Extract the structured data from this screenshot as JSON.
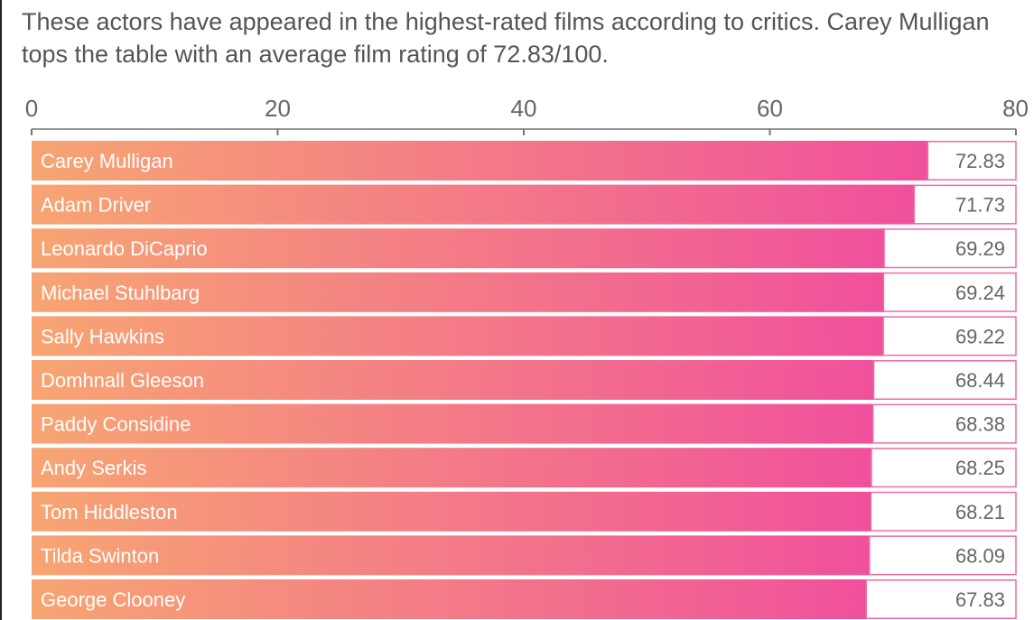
{
  "caption": "These actors have appeared in the highest-rated films according to critics. Carey Mulligan tops the table with an average film rating of 72.83/100.",
  "colors": {
    "gradient_start": "#f7a572",
    "gradient_end": "#f0509c",
    "value_box_border": "#ee6aa7",
    "axis": "#777777",
    "text_muted": "#666666"
  },
  "chart_data": {
    "type": "bar",
    "orientation": "horizontal",
    "title": "",
    "xlabel": "",
    "ylabel": "",
    "xlim": [
      0,
      80
    ],
    "x_ticks": [
      0,
      20,
      40,
      60,
      80
    ],
    "axis_position": "top",
    "grid": false,
    "categories": [
      "Carey Mulligan",
      "Adam Driver",
      "Leonardo DiCaprio",
      "Michael Stuhlbarg",
      "Sally Hawkins",
      "Domhnall Gleeson",
      "Paddy Considine",
      "Andy Serkis",
      "Tom Hiddleston",
      "Tilda Swinton",
      "George Clooney"
    ],
    "values": [
      72.83,
      71.73,
      69.29,
      69.24,
      69.22,
      68.44,
      68.38,
      68.25,
      68.21,
      68.09,
      67.83
    ],
    "value_labels": [
      "72.83",
      "71.73",
      "69.29",
      "69.24",
      "69.22",
      "68.44",
      "68.38",
      "68.25",
      "68.21",
      "68.09",
      "67.83"
    ]
  }
}
